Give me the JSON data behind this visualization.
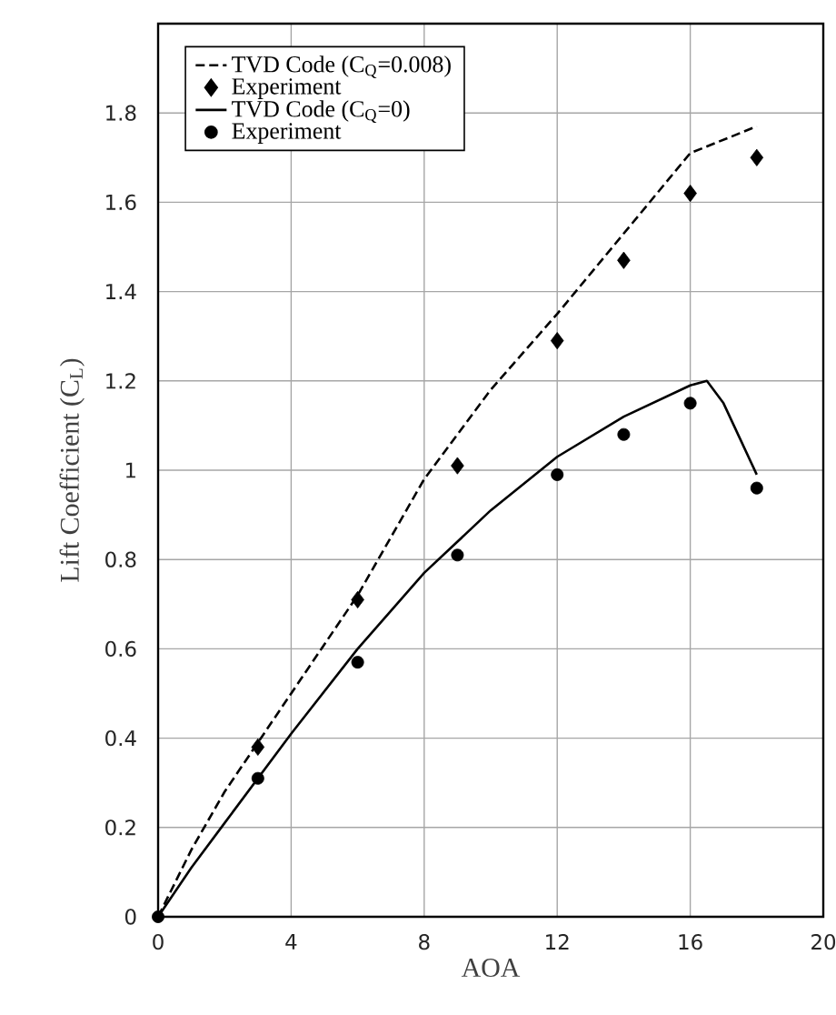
{
  "chart_data": {
    "type": "line",
    "xlabel": "AOA",
    "ylabel": "Lift Coefficient (C$_{L}$)",
    "xlim": [
      0,
      20
    ],
    "ylim": [
      0,
      2
    ],
    "xticks": [
      0,
      4,
      8,
      12,
      16,
      20
    ],
    "yticks": [
      0,
      0.2,
      0.4,
      0.6,
      0.8,
      1,
      1.2,
      1.4,
      1.6,
      1.8
    ],
    "grid": true,
    "legend": "top left",
    "series": [
      {
        "name": "TVD Code (C$_{Q}$=0.008)",
        "line_style": "dashed",
        "marker": "none",
        "color": "#000000",
        "x": [
          0,
          1,
          2,
          4,
          6,
          8,
          10,
          12,
          14,
          16,
          18
        ],
        "values": [
          0,
          0.15,
          0.28,
          0.5,
          0.72,
          0.98,
          1.18,
          1.35,
          1.53,
          1.71,
          1.77
        ]
      },
      {
        "name": "Experiment",
        "type": "scatter",
        "marker": "diamond",
        "color": "#000000",
        "x": [
          3,
          6,
          9,
          12,
          14,
          16,
          18
        ],
        "values": [
          0.38,
          0.71,
          1.01,
          1.29,
          1.47,
          1.62,
          1.7
        ]
      },
      {
        "name": "TVD Code (C$_{Q}$=0)",
        "line_style": "solid",
        "marker": "none",
        "color": "#000000",
        "x": [
          0,
          1,
          2,
          4,
          6,
          8,
          10,
          12,
          14,
          16,
          16.5,
          17,
          17.5,
          18
        ],
        "values": [
          0,
          0.11,
          0.21,
          0.41,
          0.6,
          0.77,
          0.91,
          1.03,
          1.12,
          1.19,
          1.2,
          1.15,
          1.07,
          0.99
        ]
      },
      {
        "name": "Experiment",
        "type": "scatter",
        "marker": "circle",
        "color": "#000000",
        "x": [
          0,
          3,
          6,
          9,
          12,
          14,
          16,
          18
        ],
        "values": [
          0,
          0.31,
          0.57,
          0.81,
          0.99,
          1.08,
          1.15,
          0.96
        ]
      }
    ]
  }
}
